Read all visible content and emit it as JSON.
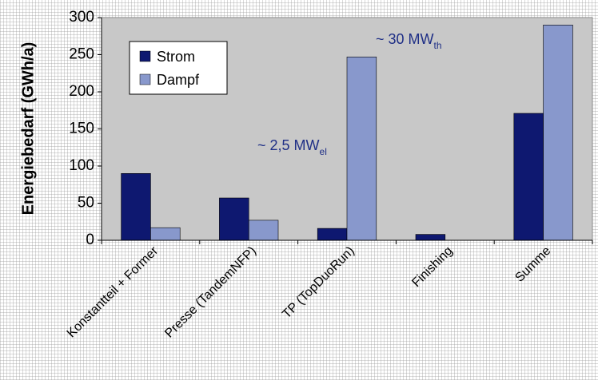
{
  "chart_data": {
    "type": "bar",
    "categories": [
      "Konstantteil + Former",
      "Presse (TandemNFP)",
      "TP (TopDuoRun)",
      "Finishing",
      "Summe"
    ],
    "series": [
      {
        "name": "Strom",
        "values": [
          90,
          57,
          16,
          8,
          171
        ],
        "color": "#0e1870"
      },
      {
        "name": "Dampf",
        "values": [
          17,
          27,
          247,
          0,
          290
        ],
        "color": "#8898cc"
      }
    ],
    "xlabel": "",
    "ylabel": "Energiebedarf (GWh/a)",
    "ylim": [
      0,
      300
    ],
    "yticks": [
      0,
      50,
      100,
      150,
      200,
      250,
      300
    ],
    "grid": false,
    "legend_position": "top-left",
    "plot_background": "#c8c8c8",
    "annotations": [
      {
        "prefix": "~ 30 MW",
        "sub": "th",
        "series": "Dampf",
        "category": "TP (TopDuoRun)"
      },
      {
        "prefix": "~ 2,5 MW",
        "sub": "el",
        "series": "Strom",
        "category": "TP (TopDuoRun)"
      }
    ]
  }
}
